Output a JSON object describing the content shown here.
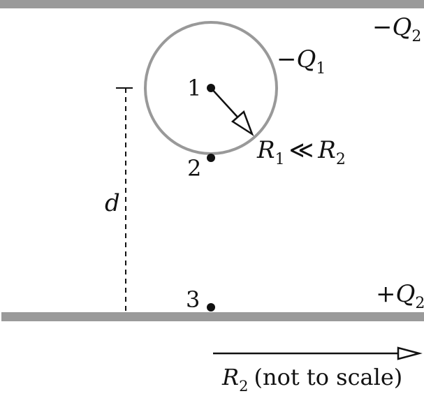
{
  "plates": {
    "top_charge": {
      "sign": "−",
      "symbol": "Q",
      "sub": "2"
    },
    "bottom_charge": {
      "sign": "+",
      "symbol": "Q",
      "sub": "2"
    }
  },
  "sphere": {
    "charge": {
      "sign": "−",
      "symbol": "Q",
      "sub": "1"
    },
    "radius_relation": {
      "left_symbol": "R",
      "left_sub": "1",
      "op": "≪",
      "right_symbol": "R",
      "right_sub": "2"
    }
  },
  "points": [
    "1",
    "2",
    "3"
  ],
  "distance_label": "d",
  "scale_arrow": {
    "symbol": "R",
    "sub": "2",
    "text": "(not to scale)"
  },
  "colors": {
    "plate": "#9a9a9a",
    "sphere": "#999999",
    "ink": "#111111"
  }
}
